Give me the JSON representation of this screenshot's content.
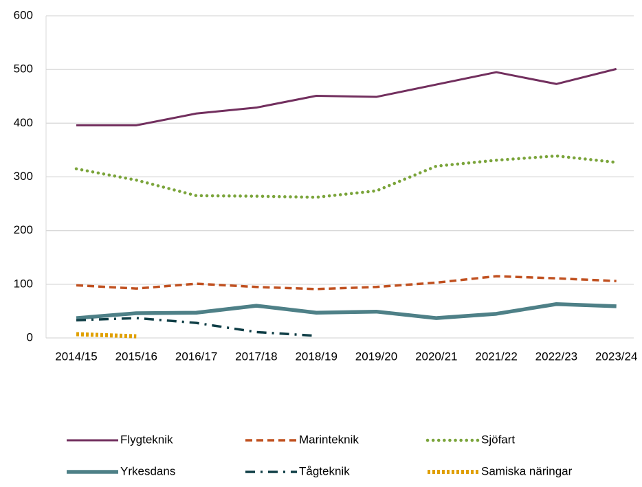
{
  "chart_data": {
    "type": "line",
    "categories": [
      "2014/15",
      "2015/16",
      "2016/17",
      "2017/18",
      "2018/19",
      "2019/20",
      "2020/21",
      "2021/22",
      "2022/23",
      "2023/24"
    ],
    "series": [
      {
        "name": "Flygteknik",
        "color": "#722f5e",
        "style": "solid",
        "values": [
          396,
          396,
          418,
          429,
          451,
          449,
          472,
          495,
          473,
          501
        ]
      },
      {
        "name": "Marinteknik",
        "color": "#c0501f",
        "style": "dashed",
        "values": [
          98,
          92,
          101,
          95,
          91,
          95,
          103,
          115,
          111,
          106
        ]
      },
      {
        "name": "Sjöfart",
        "color": "#7aa43a",
        "style": "dotted",
        "values": [
          315,
          294,
          265,
          264,
          262,
          274,
          320,
          331,
          339,
          327
        ]
      },
      {
        "name": "Yrkesdans",
        "color": "#4e8087",
        "style": "thick",
        "values": [
          37,
          46,
          47,
          60,
          47,
          49,
          37,
          45,
          63,
          59
        ]
      },
      {
        "name": "Tågteknik",
        "color": "#0e3d45",
        "style": "dashdot",
        "values": [
          33,
          37,
          28,
          11,
          4,
          null,
          null,
          null,
          null,
          null
        ]
      },
      {
        "name": "Samiska näringar",
        "color": "#e0a000",
        "style": "thickdotted",
        "values": [
          7,
          3,
          null,
          null,
          null,
          null,
          null,
          null,
          null,
          null
        ]
      }
    ],
    "ylim": [
      0,
      600
    ],
    "yticks": [
      0,
      100,
      200,
      300,
      400,
      500,
      600
    ],
    "grid": true,
    "legend": "bottom"
  }
}
